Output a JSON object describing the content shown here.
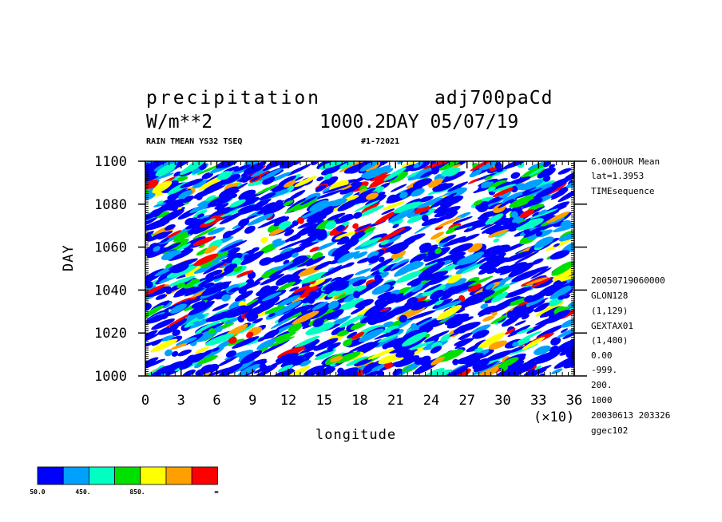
{
  "header": {
    "title_left": "precipitation",
    "title_right": "adj700paCd",
    "units": "W/m**2",
    "info_right": "1000.2DAY 05/07/19",
    "sub_left": "RAIN TMEAN YS32 TSEQ",
    "sub_right": "#1-72021"
  },
  "right_info": {
    "top": [
      "6.00HOUR Mean",
      "lat=1.3953",
      "TIMEsequence"
    ],
    "bottom": [
      "20050719060000",
      "GLON128",
      "(1,129)",
      "GEXTAX01",
      "(1,400)",
      "0.00",
      "-999.",
      "200.",
      "1000",
      "20030613 203326",
      "ggec102"
    ]
  },
  "chart_data": {
    "type": "heatmap",
    "title": "precipitation",
    "xlabel": "longitude",
    "ylabel": "DAY",
    "x_multiplier": "(×10)",
    "xlim": [
      0,
      36
    ],
    "ylim": [
      1000,
      1100
    ],
    "x_ticks": [
      "0",
      "3",
      "6",
      "9",
      "12",
      "15",
      "18",
      "21",
      "24",
      "27",
      "30",
      "33",
      "36"
    ],
    "y_ticks": [
      "1000",
      "1020",
      "1040",
      "1060",
      "1080",
      "1100"
    ],
    "colorbar": {
      "colors": [
        "#0000ff",
        "#00a0ff",
        "#00ffc0",
        "#00e000",
        "#ffff00",
        "#ffa000",
        "#ff0000"
      ],
      "labels": [
        "50.0",
        "450.",
        "850.",
        "∞"
      ]
    },
    "fill_levels": [
      "#0000ff",
      "#0000ff",
      "#0000ff",
      "#0000ff",
      "#00a0ff",
      "#00a0ff",
      "#00a0ff",
      "#00ffc0",
      "#00ffc0",
      "#00e000",
      "#00e000",
      "#ffff00",
      "#ffa000",
      "#ff0000"
    ]
  }
}
